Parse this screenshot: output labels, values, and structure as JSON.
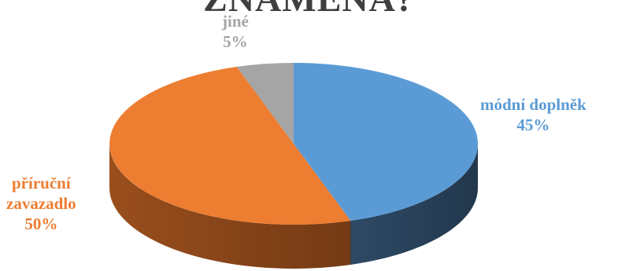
{
  "chart_data": {
    "type": "pie",
    "title": "ZNAMENÁ?",
    "slices": [
      {
        "label": "módní doplněk",
        "value": 45,
        "value_label": "45%",
        "color": "#5B9BD5",
        "side_color": "#2E4A66"
      },
      {
        "label_lines": [
          "příruční",
          "zavazadlo"
        ],
        "label": "příruční zavazadlo",
        "value": 50,
        "value_label": "50%",
        "color": "#ED7D31",
        "side_color": "#9A4E1C"
      },
      {
        "label": "jiné",
        "value": 5,
        "value_label": "5%",
        "color": "#A5A5A5",
        "side_color": "#6E6E6E"
      }
    ],
    "start_direction": "12 o'clock",
    "order": "clockwise",
    "style": "3D",
    "legend": "none"
  }
}
